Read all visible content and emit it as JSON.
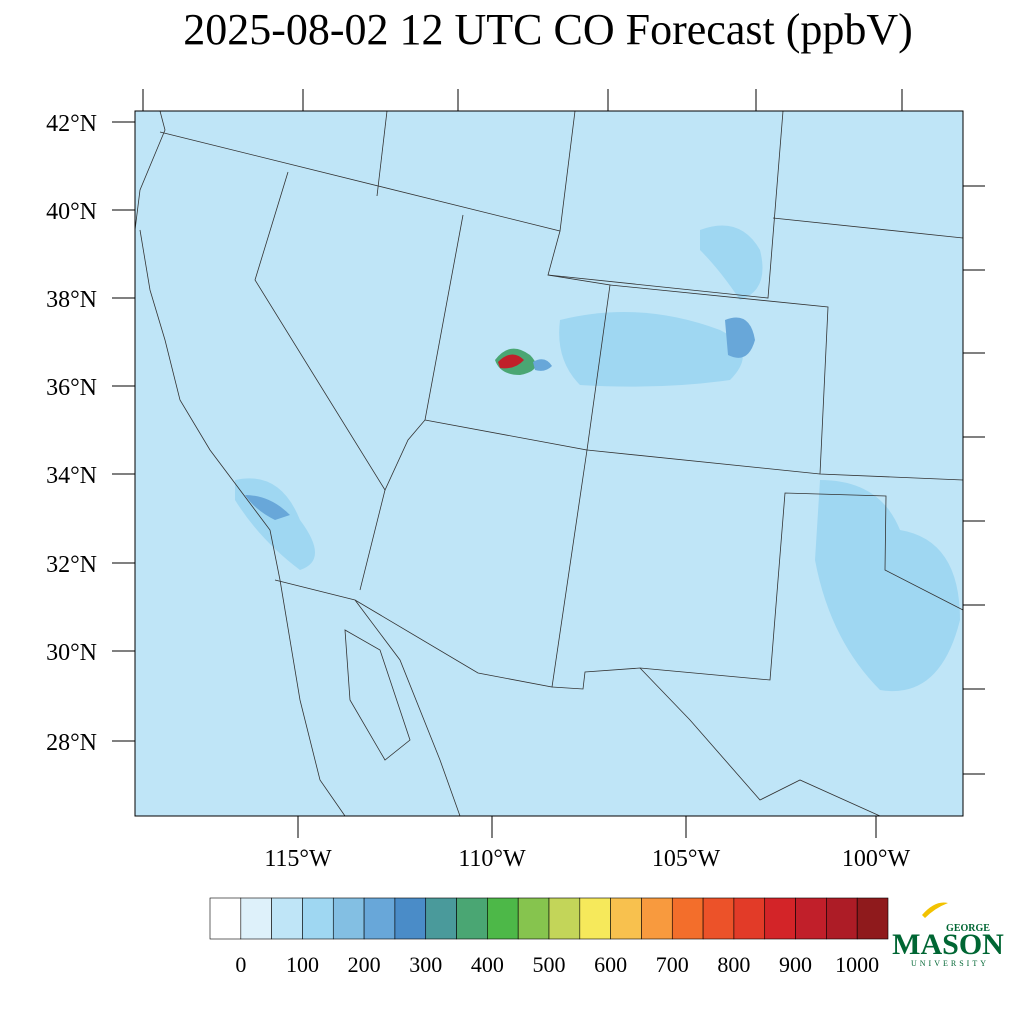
{
  "title": "2025-08-02 12 UTC CO Forecast (ppbV)",
  "map": {
    "lat_labels": [
      "42°N",
      "40°N",
      "38°N",
      "36°N",
      "34°N",
      "32°N",
      "30°N",
      "28°N"
    ],
    "lon_labels": [
      "115°W",
      "110°W",
      "105°W",
      "100°W"
    ],
    "background": "#bfe5f7",
    "line_color": "#333333"
  },
  "colorbar": {
    "colors": [
      "#ffffff",
      "#def1fa",
      "#bfe5f7",
      "#9fd7f2",
      "#83bfe3",
      "#68a7d9",
      "#4a8cc8",
      "#4a9a9b",
      "#4aa673",
      "#4db848",
      "#86c44e",
      "#c3d559",
      "#f6e95b",
      "#f8c14e",
      "#f89a3e",
      "#f36e2b",
      "#ec5229",
      "#e23b28",
      "#d32428",
      "#c11f2a",
      "#ad1c26",
      "#8f1a1c"
    ],
    "labels": [
      "0",
      "100",
      "200",
      "300",
      "400",
      "500",
      "600",
      "700",
      "800",
      "900",
      "1000"
    ]
  },
  "logo": {
    "top": "GEORGE",
    "main": "MASON",
    "bottom": "UNIVERSITY"
  }
}
